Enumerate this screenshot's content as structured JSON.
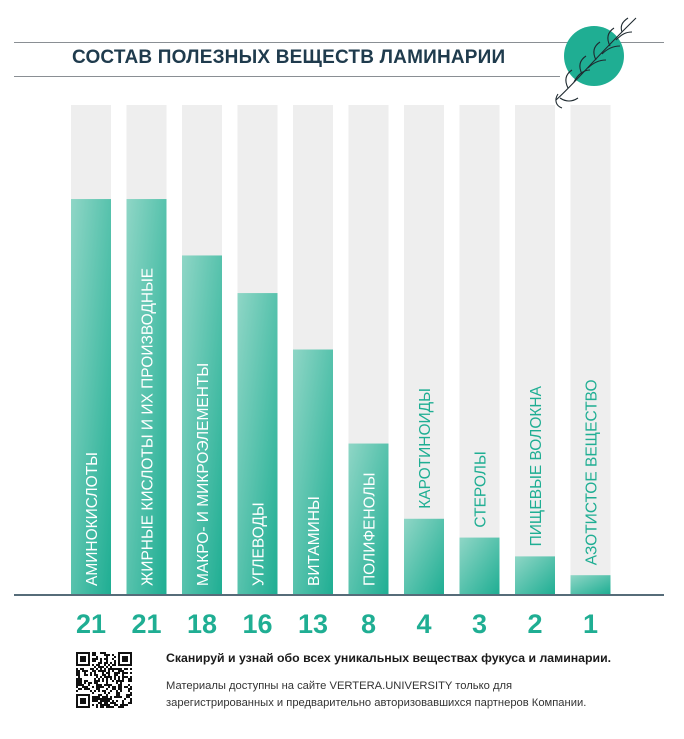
{
  "title": "СОСТАВ ПОЛЕЗНЫХ ВЕЩЕСТВ ЛАМИНАРИИ",
  "footer": {
    "headline": "Сканируй и узнай обо всех уникальных веществах фукуса и ламинарии.",
    "line1": "Материалы доступны на сайте VERTERA.UNIVERSITY только для",
    "line2": "зарегистрированных и предварительно авторизовавшихся партнеров Компании."
  },
  "colors": {
    "accent": "#1fae93",
    "accent_light": "#8fd6c6",
    "track": "#eeeeee",
    "title": "#1f3b4d"
  },
  "chart_data": {
    "type": "bar",
    "title": "СОСТАВ ПОЛЕЗНЫХ ВЕЩЕСТВ ЛАМИНАРИИ",
    "categories": [
      "АМИНОКИСЛОТЫ",
      "ЖИРНЫЕ КИСЛОТЫ И ИХ ПРОИЗВОДНЫЕ",
      "МАКРО- И МИКРОЭЛЕМЕНТЫ",
      "УГЛЕВОДЫ",
      "ВИТАМИНЫ",
      "ПОЛИФЕНОЛЫ",
      "КАРОТИНОИДЫ",
      "СТЕРОЛЫ",
      "ПИЩЕВЫЕ ВОЛОКНА",
      "АЗОТИСТОЕ ВЕЩЕСТВО"
    ],
    "values": [
      21,
      21,
      18,
      16,
      13,
      8,
      4,
      3,
      2,
      1
    ],
    "value_labels": [
      "21",
      "21",
      "18",
      "16",
      "13",
      "8",
      "4",
      "3",
      "2",
      "1"
    ],
    "ylim": [
      0,
      26
    ],
    "grid": false,
    "orientation": "vertical",
    "label_placement": [
      "inside",
      "inside",
      "inside",
      "inside",
      "inside",
      "inside",
      "above",
      "above",
      "above",
      "above"
    ]
  }
}
